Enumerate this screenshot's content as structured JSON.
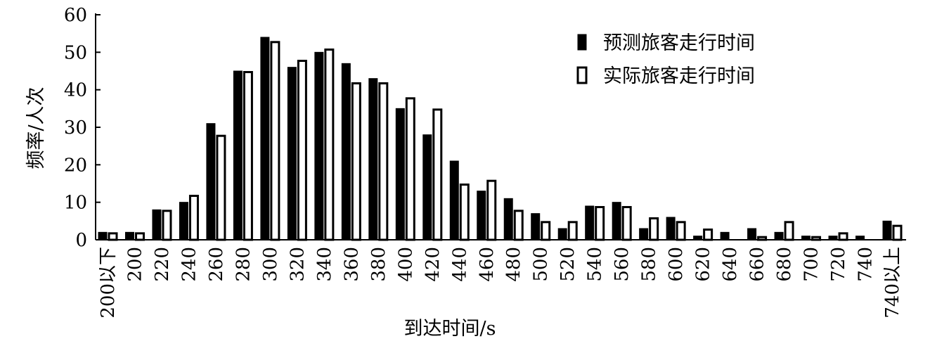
{
  "chart_data": {
    "type": "bar",
    "xlabel": "到达时间/s",
    "ylabel": "频率/人次",
    "ylim": [
      0,
      60
    ],
    "yticks": [
      0,
      10,
      20,
      30,
      40,
      50,
      60
    ],
    "legend_position": "top-right",
    "grid": false,
    "categories": [
      "200以下",
      "200",
      "220",
      "240",
      "260",
      "280",
      "300",
      "320",
      "340",
      "360",
      "380",
      "400",
      "420",
      "440",
      "460",
      "480",
      "500",
      "520",
      "540",
      "560",
      "580",
      "600",
      "620",
      "640",
      "660",
      "680",
      "700",
      "720",
      "740",
      "740以上"
    ],
    "series": [
      {
        "name": "预测旅客走行时间",
        "style": "filled",
        "color": "#000000",
        "values": [
          2,
          2,
          8,
          10,
          31,
          45,
          54,
          46,
          50,
          47,
          43,
          35,
          28,
          21,
          13,
          11,
          7,
          3,
          9,
          10,
          3,
          6,
          1,
          2,
          3,
          2,
          1,
          1,
          1,
          5
        ]
      },
      {
        "name": "实际旅客走行时间",
        "style": "hollow",
        "color": "#ffffff",
        "values": [
          2,
          2,
          8,
          12,
          28,
          45,
          53,
          48,
          51,
          42,
          42,
          38,
          35,
          15,
          16,
          8,
          5,
          5,
          9,
          9,
          6,
          5,
          3,
          0,
          1,
          5,
          1,
          2,
          0,
          4
        ]
      }
    ]
  }
}
